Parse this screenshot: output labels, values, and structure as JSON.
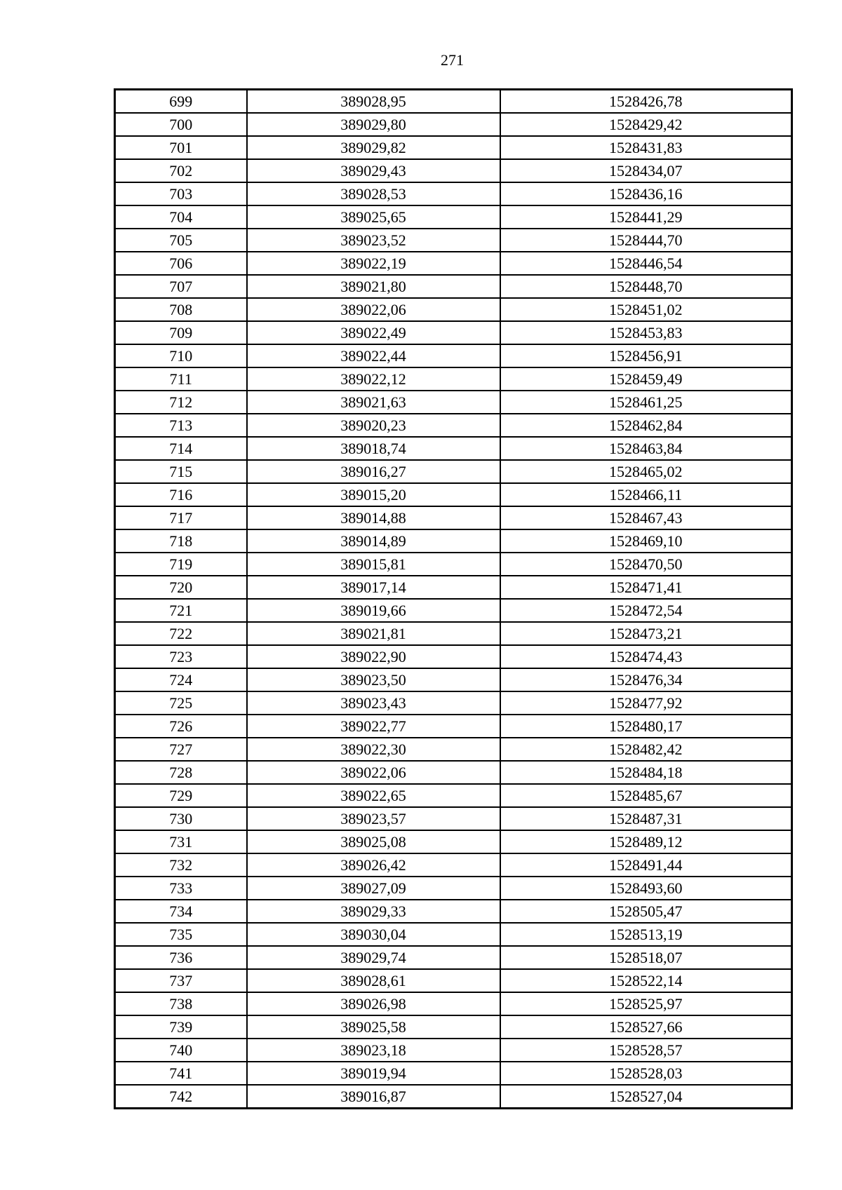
{
  "page_number": "271",
  "table": {
    "rows": [
      [
        "699",
        "389028,95",
        "1528426,78"
      ],
      [
        "700",
        "389029,80",
        "1528429,42"
      ],
      [
        "701",
        "389029,82",
        "1528431,83"
      ],
      [
        "702",
        "389029,43",
        "1528434,07"
      ],
      [
        "703",
        "389028,53",
        "1528436,16"
      ],
      [
        "704",
        "389025,65",
        "1528441,29"
      ],
      [
        "705",
        "389023,52",
        "1528444,70"
      ],
      [
        "706",
        "389022,19",
        "1528446,54"
      ],
      [
        "707",
        "389021,80",
        "1528448,70"
      ],
      [
        "708",
        "389022,06",
        "1528451,02"
      ],
      [
        "709",
        "389022,49",
        "1528453,83"
      ],
      [
        "710",
        "389022,44",
        "1528456,91"
      ],
      [
        "711",
        "389022,12",
        "1528459,49"
      ],
      [
        "712",
        "389021,63",
        "1528461,25"
      ],
      [
        "713",
        "389020,23",
        "1528462,84"
      ],
      [
        "714",
        "389018,74",
        "1528463,84"
      ],
      [
        "715",
        "389016,27",
        "1528465,02"
      ],
      [
        "716",
        "389015,20",
        "1528466,11"
      ],
      [
        "717",
        "389014,88",
        "1528467,43"
      ],
      [
        "718",
        "389014,89",
        "1528469,10"
      ],
      [
        "719",
        "389015,81",
        "1528470,50"
      ],
      [
        "720",
        "389017,14",
        "1528471,41"
      ],
      [
        "721",
        "389019,66",
        "1528472,54"
      ],
      [
        "722",
        "389021,81",
        "1528473,21"
      ],
      [
        "723",
        "389022,90",
        "1528474,43"
      ],
      [
        "724",
        "389023,50",
        "1528476,34"
      ],
      [
        "725",
        "389023,43",
        "1528477,92"
      ],
      [
        "726",
        "389022,77",
        "1528480,17"
      ],
      [
        "727",
        "389022,30",
        "1528482,42"
      ],
      [
        "728",
        "389022,06",
        "1528484,18"
      ],
      [
        "729",
        "389022,65",
        "1528485,67"
      ],
      [
        "730",
        "389023,57",
        "1528487,31"
      ],
      [
        "731",
        "389025,08",
        "1528489,12"
      ],
      [
        "732",
        "389026,42",
        "1528491,44"
      ],
      [
        "733",
        "389027,09",
        "1528493,60"
      ],
      [
        "734",
        "389029,33",
        "1528505,47"
      ],
      [
        "735",
        "389030,04",
        "1528513,19"
      ],
      [
        "736",
        "389029,74",
        "1528518,07"
      ],
      [
        "737",
        "389028,61",
        "1528522,14"
      ],
      [
        "738",
        "389026,98",
        "1528525,97"
      ],
      [
        "739",
        "389025,58",
        "1528527,66"
      ],
      [
        "740",
        "389023,18",
        "1528528,57"
      ],
      [
        "741",
        "389019,94",
        "1528528,03"
      ],
      [
        "742",
        "389016,87",
        "1528527,04"
      ]
    ]
  }
}
